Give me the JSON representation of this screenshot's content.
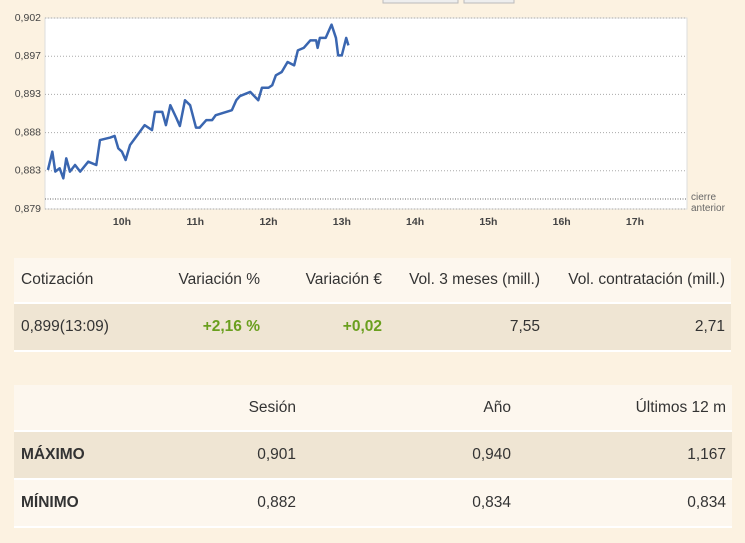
{
  "chart_data": {
    "type": "line",
    "x": [
      8.99,
      9.05,
      9.09,
      9.15,
      9.2,
      9.24,
      9.29,
      9.36,
      9.43,
      9.54,
      9.65,
      9.7,
      9.84,
      9.9,
      9.95,
      10.0,
      10.05,
      10.11,
      10.21,
      10.31,
      10.41,
      10.45,
      10.55,
      10.6,
      10.66,
      10.74,
      10.79,
      10.86,
      10.93,
      11.01,
      11.06,
      11.15,
      11.23,
      11.28,
      11.39,
      11.5,
      11.56,
      11.61,
      11.75,
      11.86,
      11.91,
      12.0,
      12.05,
      12.1,
      12.18,
      12.26,
      12.35,
      12.4,
      12.48,
      12.57,
      12.65,
      12.67,
      12.7,
      12.78,
      12.86,
      12.92,
      12.95,
      13.0,
      13.06,
      13.09
    ],
    "series": [
      {
        "color": "#3a66b0",
        "values": [
          0.8835,
          0.8857,
          0.8833,
          0.8837,
          0.8825,
          0.8849,
          0.8833,
          0.8841,
          0.8833,
          0.8845,
          0.8841,
          0.8871,
          0.8874,
          0.8876,
          0.8861,
          0.8857,
          0.8847,
          0.8865,
          0.8877,
          0.8889,
          0.8883,
          0.8905,
          0.8905,
          0.8889,
          0.8913,
          0.8898,
          0.8888,
          0.8919,
          0.8913,
          0.8886,
          0.8886,
          0.8895,
          0.8895,
          0.8901,
          0.8904,
          0.8907,
          0.8919,
          0.8924,
          0.8929,
          0.8919,
          0.8934,
          0.8934,
          0.8937,
          0.8949,
          0.8953,
          0.8965,
          0.8961,
          0.8979,
          0.8982,
          0.8991,
          0.8991,
          0.8982,
          0.8994,
          0.8994,
          0.901,
          0.8994,
          0.8973,
          0.8973,
          0.8994,
          0.8985
        ]
      }
    ],
    "xlim": [
      8.95,
      17.71
    ],
    "xticks": [
      {
        "value": 10,
        "label": "10h"
      },
      {
        "value": 11,
        "label": "11h"
      },
      {
        "value": 12,
        "label": "12h"
      },
      {
        "value": 13,
        "label": "13h"
      },
      {
        "value": 14,
        "label": "14h"
      },
      {
        "value": 15,
        "label": "15h"
      },
      {
        "value": 16,
        "label": "16h"
      },
      {
        "value": 17,
        "label": "17h"
      }
    ],
    "ylim": [
      0.8788,
      0.9018
    ],
    "yticks": [
      {
        "value": 0.8788,
        "label": "0,879"
      },
      {
        "value": 0.8834,
        "label": "0,883"
      },
      {
        "value": 0.888,
        "label": "0,888"
      },
      {
        "value": 0.8926,
        "label": "0,893"
      },
      {
        "value": 0.8972,
        "label": "0,897"
      },
      {
        "value": 0.9018,
        "label": "0,902"
      }
    ],
    "grid": true,
    "reference": {
      "value": 0.88,
      "label": "cierre anterior"
    }
  },
  "quote_table": {
    "columns": [
      "Cotización",
      "Variación %",
      "Variación €",
      "Vol. 3 meses (mill.)",
      "Vol. contratación (mill.)"
    ],
    "rows": [
      [
        "0,899(13:09)",
        "+2,16 %",
        "+0,02",
        "7,55",
        "2,71"
      ]
    ]
  },
  "range_table": {
    "columns": [
      "Sesión",
      "Año",
      "Últimos 12 m"
    ],
    "rows": [
      {
        "label": "MÁXIMO",
        "values": [
          "0,901",
          "0,940",
          "1,167"
        ]
      },
      {
        "label": "MÍNIMO",
        "values": [
          "0,882",
          "0,834",
          "0,834"
        ]
      }
    ]
  }
}
